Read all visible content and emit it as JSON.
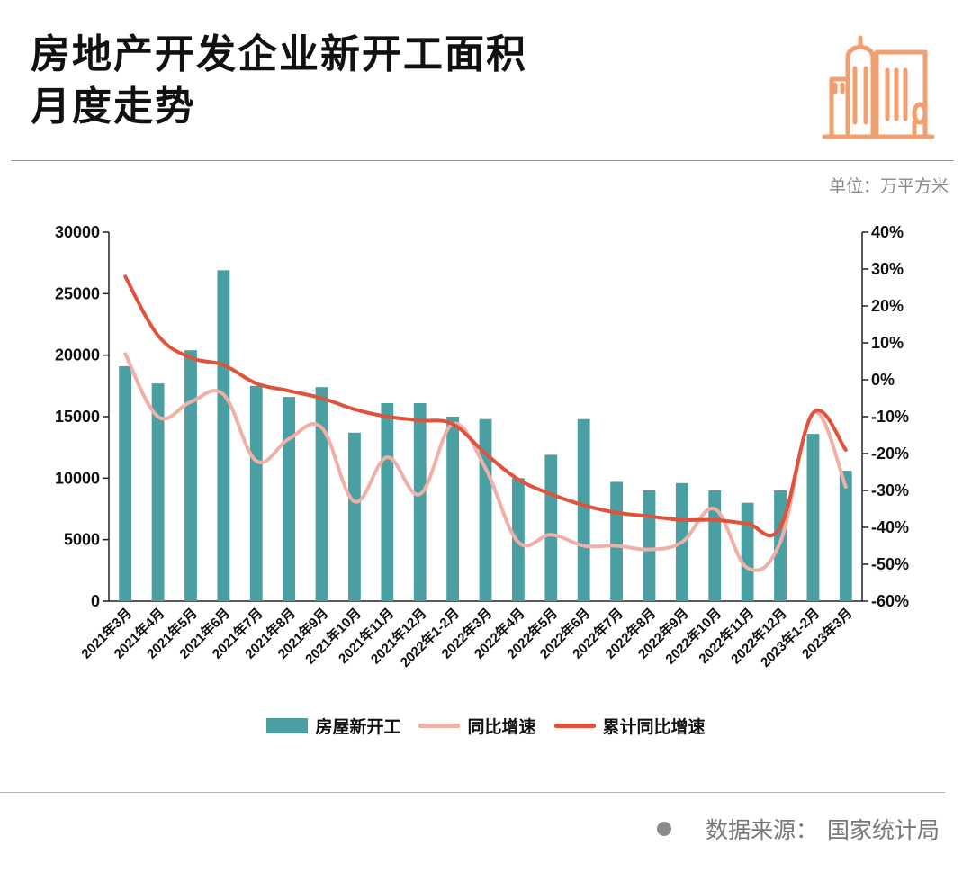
{
  "title": {
    "line1": "房地产开发企业新开工面积",
    "line2": "月度走势"
  },
  "unit_label": "单位：万平方米",
  "source": {
    "label": "数据来源：",
    "value": "国家统计局"
  },
  "logo": {
    "icon": "city-buildings-icon",
    "color": "#f0a070"
  },
  "colors": {
    "bar": "#4a9fa3",
    "yoy": "#f0b0a8",
    "cum": "#e0533a",
    "axis": "#222222"
  },
  "chart_data": {
    "type": "bar",
    "categories": [
      "2021年3月",
      "2021年4月",
      "2021年5月",
      "2021年6月",
      "2021年7月",
      "2021年8月",
      "2021年9月",
      "2021年10月",
      "2021年11月",
      "2021年12月",
      "2022年1-2月",
      "2022年3月",
      "2022年4月",
      "2022年5月",
      "2022年6月",
      "2022年7月",
      "2022年8月",
      "2022年9月",
      "2022年10月",
      "2022年11月",
      "2022年12月",
      "2023年1-2月",
      "2023年3月"
    ],
    "series": [
      {
        "name": "房屋新开工",
        "type": "bar",
        "axis": "left",
        "values": [
          19100,
          17700,
          20400,
          26900,
          17500,
          16600,
          17400,
          13700,
          16100,
          16100,
          15000,
          14800,
          10000,
          11900,
          14800,
          9700,
          9000,
          9600,
          9000,
          8000,
          9000,
          13600,
          10600
        ]
      },
      {
        "name": "同比增速",
        "type": "line",
        "axis": "right",
        "values": [
          7,
          -10,
          -6,
          -4,
          -22,
          -16,
          -13,
          -33,
          -21,
          -31,
          -12,
          -24,
          -44,
          -42,
          -45,
          -45,
          -46,
          -44,
          -35,
          -51,
          -44,
          -9,
          -29
        ]
      },
      {
        "name": "累计同比增速",
        "type": "line",
        "axis": "right",
        "values": [
          28,
          12,
          6,
          4,
          -1,
          -3,
          -5,
          -8,
          -10,
          -11,
          -12,
          -20,
          -27,
          -31,
          -34,
          -36,
          -37,
          -38,
          -38,
          -39,
          -40,
          -9,
          -19
        ]
      }
    ],
    "ylim_left": [
      0,
      30000
    ],
    "yticks_left": [
      "0",
      "5000",
      "10000",
      "15000",
      "20000",
      "25000",
      "30000"
    ],
    "ylim_right": [
      -60,
      40
    ],
    "yticks_right": [
      "-60%",
      "-50%",
      "-40%",
      "-30%",
      "-20%",
      "-10%",
      "0%",
      "10%",
      "20%",
      "30%",
      "40%"
    ],
    "legend_position": "bottom",
    "grid": false
  }
}
